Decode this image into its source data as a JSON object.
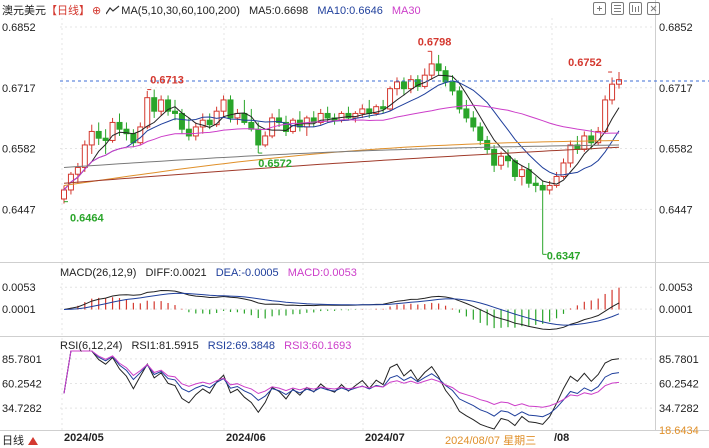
{
  "header": {
    "symbol": "澳元美元",
    "period": "【日线】",
    "circle_plus": "⊕",
    "ma_params": "MA(5,10,30,60,100,200)",
    "ma5": "MA5:0.6698",
    "ma10": "MA10:0.6646",
    "ma30": "MA30"
  },
  "macd_header": {
    "params": "MACD(26,12,9)",
    "diff": "DIFF:0.0021",
    "dea": "DEA:-0.0005",
    "macd": "MACD:0.0053"
  },
  "rsi_header": {
    "params": "RSI(6,12,24)",
    "rsi1": "RSI1:81.5915",
    "rsi2": "RSI2:69.3848",
    "rsi3": "RSI3:60.1693"
  },
  "bottom": {
    "period_tag": "日线",
    "date1": "2024/05",
    "date2": "2024/06",
    "date3": "2024/07",
    "crosshair_date": "2024/08/07 星期三",
    "date4": "/08",
    "rsi_low_right": "18.6434"
  },
  "colors": {
    "up": "#d4382f",
    "down": "#2aa52a",
    "ma5": "#222222",
    "ma10": "#1f3f9c",
    "ma30": "#cc3ec9",
    "ma60": "#e0902a",
    "ma100": "#7a7a7a",
    "ma200": "#a03a2a",
    "grid": "#e4e4e4",
    "label_blue": "#1f5fbf",
    "price_line": "#3c6ed6"
  },
  "chart_data": {
    "type": "candlestick",
    "price_axis": {
      "ticks": [
        0.6852,
        0.6717,
        0.6582,
        0.6447
      ],
      "tick_labels": [
        "0.6852",
        "0.6717",
        "0.6582",
        "0.6447"
      ],
      "ylim": [
        0.633,
        0.6872
      ]
    },
    "x_labels": [
      "2024/05",
      "2024/06",
      "2024/07",
      "/08"
    ],
    "annotations": [
      {
        "text": "0.6713",
        "kind": "high",
        "color": "#d4382f"
      },
      {
        "text": "0.6572",
        "kind": "low",
        "color": "#2aa52a"
      },
      {
        "text": "0.6464",
        "kind": "low",
        "color": "#2aa52a"
      },
      {
        "text": "0.6798",
        "kind": "high",
        "color": "#d4382f"
      },
      {
        "text": "0.6752",
        "kind": "high",
        "color": "#d4382f"
      },
      {
        "text": "0.6347",
        "kind": "low",
        "color": "#2aa52a"
      }
    ],
    "candles": [
      [
        0.647,
        0.65,
        0.646,
        0.649
      ],
      [
        0.649,
        0.653,
        0.648,
        0.6525
      ],
      [
        0.6525,
        0.655,
        0.6505,
        0.654
      ],
      [
        0.654,
        0.66,
        0.653,
        0.659
      ],
      [
        0.659,
        0.6635,
        0.657,
        0.662
      ],
      [
        0.662,
        0.664,
        0.659,
        0.6605
      ],
      [
        0.6605,
        0.6625,
        0.657,
        0.66
      ],
      [
        0.66,
        0.665,
        0.6595,
        0.664
      ],
      [
        0.664,
        0.666,
        0.661,
        0.6625
      ],
      [
        0.6625,
        0.664,
        0.66,
        0.6615
      ],
      [
        0.6615,
        0.6625,
        0.6585,
        0.6595
      ],
      [
        0.6595,
        0.664,
        0.659,
        0.663
      ],
      [
        0.663,
        0.671,
        0.6625,
        0.6695
      ],
      [
        0.6695,
        0.6713,
        0.665,
        0.6665
      ],
      [
        0.6665,
        0.67,
        0.6655,
        0.669
      ],
      [
        0.669,
        0.67,
        0.6655,
        0.6665
      ],
      [
        0.6665,
        0.669,
        0.6645,
        0.666
      ],
      [
        0.666,
        0.667,
        0.6615,
        0.6625
      ],
      [
        0.6625,
        0.665,
        0.66,
        0.661
      ],
      [
        0.661,
        0.664,
        0.66,
        0.663
      ],
      [
        0.663,
        0.666,
        0.6615,
        0.6645
      ],
      [
        0.6645,
        0.666,
        0.6625,
        0.6635
      ],
      [
        0.6635,
        0.6675,
        0.663,
        0.6665
      ],
      [
        0.6665,
        0.67,
        0.665,
        0.669
      ],
      [
        0.669,
        0.67,
        0.664,
        0.665
      ],
      [
        0.665,
        0.667,
        0.6635,
        0.666
      ],
      [
        0.666,
        0.669,
        0.6635,
        0.664
      ],
      [
        0.664,
        0.667,
        0.662,
        0.6625
      ],
      [
        0.6625,
        0.664,
        0.6572,
        0.659
      ],
      [
        0.659,
        0.662,
        0.6585,
        0.661
      ],
      [
        0.661,
        0.666,
        0.6605,
        0.665
      ],
      [
        0.665,
        0.667,
        0.663,
        0.664
      ],
      [
        0.664,
        0.6655,
        0.661,
        0.662
      ],
      [
        0.662,
        0.665,
        0.6615,
        0.6645
      ],
      [
        0.6645,
        0.6665,
        0.662,
        0.663
      ],
      [
        0.663,
        0.6655,
        0.661,
        0.665
      ],
      [
        0.665,
        0.6665,
        0.663,
        0.664
      ],
      [
        0.664,
        0.667,
        0.6635,
        0.666
      ],
      [
        0.666,
        0.6675,
        0.664,
        0.665
      ],
      [
        0.665,
        0.666,
        0.6635,
        0.6645
      ],
      [
        0.6645,
        0.6665,
        0.664,
        0.666
      ],
      [
        0.666,
        0.6675,
        0.6645,
        0.665
      ],
      [
        0.665,
        0.6665,
        0.664,
        0.666
      ],
      [
        0.666,
        0.668,
        0.665,
        0.667
      ],
      [
        0.667,
        0.669,
        0.665,
        0.666
      ],
      [
        0.666,
        0.668,
        0.6655,
        0.6675
      ],
      [
        0.6675,
        0.669,
        0.666,
        0.667
      ],
      [
        0.667,
        0.672,
        0.6665,
        0.6715
      ],
      [
        0.6715,
        0.674,
        0.67,
        0.673
      ],
      [
        0.673,
        0.674,
        0.67,
        0.6715
      ],
      [
        0.6715,
        0.6745,
        0.6705,
        0.6735
      ],
      [
        0.6735,
        0.6745,
        0.671,
        0.672
      ],
      [
        0.672,
        0.676,
        0.6715,
        0.6745
      ],
      [
        0.6745,
        0.6798,
        0.6735,
        0.677
      ],
      [
        0.677,
        0.679,
        0.6745,
        0.6755
      ],
      [
        0.6755,
        0.6765,
        0.672,
        0.673
      ],
      [
        0.673,
        0.6745,
        0.67,
        0.671
      ],
      [
        0.671,
        0.672,
        0.666,
        0.667
      ],
      [
        0.667,
        0.669,
        0.664,
        0.665
      ],
      [
        0.665,
        0.6665,
        0.662,
        0.663
      ],
      [
        0.663,
        0.664,
        0.659,
        0.66
      ],
      [
        0.66,
        0.661,
        0.657,
        0.658
      ],
      [
        0.658,
        0.659,
        0.653,
        0.6545
      ],
      [
        0.6545,
        0.6575,
        0.6535,
        0.6565
      ],
      [
        0.6565,
        0.658,
        0.654,
        0.6555
      ],
      [
        0.6555,
        0.656,
        0.651,
        0.652
      ],
      [
        0.652,
        0.6545,
        0.65,
        0.6535
      ],
      [
        0.6535,
        0.655,
        0.6495,
        0.6505
      ],
      [
        0.6505,
        0.652,
        0.6485,
        0.65
      ],
      [
        0.65,
        0.651,
        0.6347,
        0.649
      ],
      [
        0.649,
        0.651,
        0.648,
        0.65
      ],
      [
        0.65,
        0.653,
        0.6495,
        0.652
      ],
      [
        0.652,
        0.656,
        0.6515,
        0.655
      ],
      [
        0.655,
        0.66,
        0.654,
        0.659
      ],
      [
        0.659,
        0.661,
        0.657,
        0.658
      ],
      [
        0.658,
        0.662,
        0.6575,
        0.661
      ],
      [
        0.661,
        0.6625,
        0.658,
        0.6595
      ],
      [
        0.6595,
        0.663,
        0.659,
        0.662
      ],
      [
        0.662,
        0.67,
        0.6615,
        0.669
      ],
      [
        0.669,
        0.674,
        0.668,
        0.6725
      ],
      [
        0.6725,
        0.6752,
        0.6715,
        0.6735
      ]
    ],
    "current_price": 0.6732,
    "macd_axis": {
      "tick_labels": [
        "0.0053",
        "0.0001"
      ],
      "ticks": [
        0.0053,
        0.0001
      ],
      "ylim": [
        -0.0063,
        0.0075
      ]
    },
    "rsi_axis": {
      "tick_labels": [
        "85.7801",
        "60.2542",
        "34.7282"
      ],
      "ticks": [
        85.7801,
        60.2542,
        34.7282
      ],
      "ylim": [
        12,
        95
      ]
    }
  }
}
